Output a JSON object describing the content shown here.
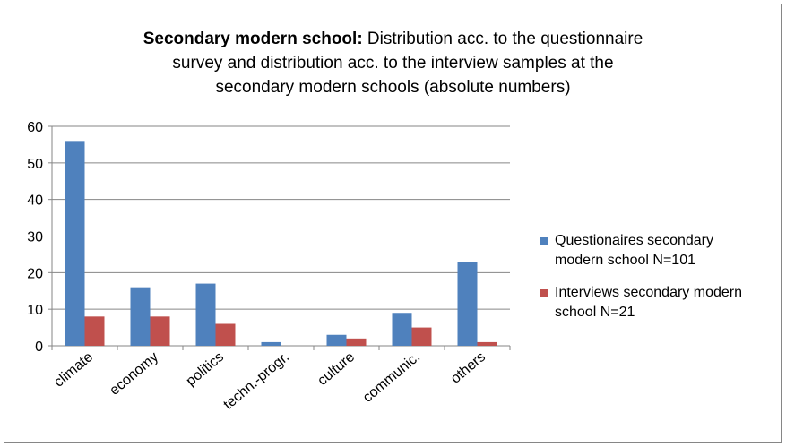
{
  "chart_data": {
    "type": "bar",
    "title_bold": "Secondary modern school:",
    "title_rest_1": " Distribution acc. to the questionnaire",
    "title_line_2": "survey and distribution acc. to the interview samples at the",
    "title_line_3": "secondary modern schools (absolute numbers)",
    "categories": [
      "climate",
      "economy",
      "politics",
      "techn.-progr.",
      "culture",
      "communic.",
      "others"
    ],
    "series": [
      {
        "name": "Questionaires secondary modern school N=101",
        "values": [
          56,
          16,
          17,
          1,
          3,
          9,
          23
        ],
        "color": "#4f81bd"
      },
      {
        "name": "Interviews secondary modern school N=21",
        "values": [
          8,
          8,
          6,
          0,
          2,
          5,
          1
        ],
        "color": "#c0504d"
      }
    ],
    "yticks": [
      "0",
      "10",
      "20",
      "30",
      "40",
      "50",
      "60"
    ],
    "ylim": [
      0,
      60
    ],
    "grid": true,
    "legend_position": "right",
    "legend_lines": [
      [
        "Questionaires secondary",
        "modern school N=101"
      ],
      [
        "Interviews secondary modern",
        "school N=21"
      ]
    ]
  }
}
